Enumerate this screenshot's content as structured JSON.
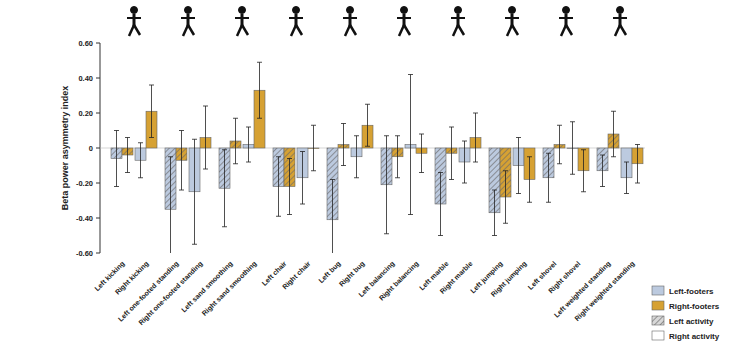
{
  "chart_data": {
    "type": "bar",
    "y_label": "Beta power asymmetry index",
    "categories": [
      "Left kicking",
      "Right kicking",
      "Left one-footed standing",
      "Right one-footed standing",
      "Left sand smoothing",
      "Right sand smoothing",
      "Left chair",
      "Right chair",
      "Left bug",
      "Right bug",
      "Left balancing",
      "Right balancing",
      "Left marble",
      "Right marble",
      "Left jumping",
      "Right jumping",
      "Left shovel",
      "Right shovel",
      "Left weighted standing",
      "Right weighted standing"
    ],
    "series": [
      {
        "name": "Left-footers",
        "color": "#bccadf",
        "values": [
          -0.06,
          -0.07,
          -0.35,
          -0.25,
          -0.23,
          0.02,
          -0.22,
          -0.17,
          -0.41,
          -0.05,
          -0.21,
          0.02,
          -0.32,
          -0.08,
          -0.37,
          -0.1,
          -0.17,
          0.0,
          -0.13,
          -0.17
        ],
        "errors": [
          0.16,
          0.1,
          0.3,
          0.3,
          0.22,
          0.1,
          0.17,
          0.15,
          0.23,
          0.12,
          0.28,
          0.4,
          0.18,
          0.12,
          0.13,
          0.16,
          0.14,
          0.15,
          0.09,
          0.09
        ]
      },
      {
        "name": "Right-footers",
        "color": "#d6a133",
        "values": [
          -0.04,
          0.21,
          -0.07,
          0.06,
          0.04,
          0.33,
          -0.22,
          0.0,
          0.02,
          0.13,
          -0.05,
          -0.03,
          -0.03,
          0.06,
          -0.28,
          -0.18,
          0.02,
          -0.13,
          0.08,
          -0.09
        ],
        "errors": [
          0.1,
          0.15,
          0.17,
          0.18,
          0.13,
          0.16,
          0.16,
          0.13,
          0.12,
          0.12,
          0.12,
          0.11,
          0.15,
          0.14,
          0.15,
          0.13,
          0.11,
          0.12,
          0.13,
          0.11
        ]
      }
    ],
    "pattern_legend": [
      "Left activity",
      "Right activity"
    ],
    "ylim": [
      -0.6,
      0.6
    ],
    "yticks": [
      {
        "value": 0.6,
        "label": "0.60"
      },
      {
        "value": 0.4,
        "label": "0.40"
      },
      {
        "value": 0.2,
        "label": "0.20"
      },
      0,
      {
        "value": -0.2,
        "label": "-0.20"
      },
      {
        "value": -0.4,
        "label": "-0.40"
      },
      {
        "value": -0.6,
        "label": "-0.60"
      }
    ],
    "legend": "bottom-right",
    "grid": false
  }
}
